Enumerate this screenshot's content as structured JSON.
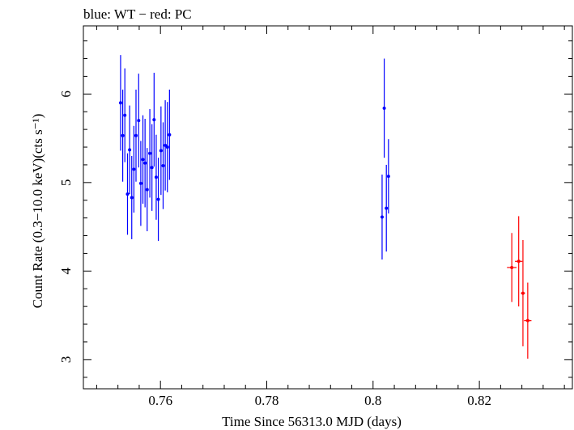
{
  "chart_data": {
    "type": "scatter",
    "title": "blue: WT − red: PC",
    "xlabel": "Time Since 56313.0 MJD (days)",
    "ylabel": "Count Rate (0.3−10.0 keV)(cts s⁻¹)",
    "xlim": [
      0.7455,
      0.8375
    ],
    "ylim": [
      2.67,
      6.77
    ],
    "xticks": [
      0.76,
      0.78,
      0.8,
      0.82
    ],
    "xtick_labels": [
      "0.76",
      "0.78",
      "0.8",
      "0.82"
    ],
    "yticks": [
      3,
      4,
      5,
      6
    ],
    "ytick_labels": [
      "3",
      "4",
      "5",
      "6"
    ],
    "grid": false,
    "series": [
      {
        "name": "WT",
        "color": "#0000ff",
        "points": [
          {
            "x": 0.7525,
            "y": 5.9,
            "yerr": 0.54
          },
          {
            "x": 0.7529,
            "y": 5.53,
            "yerr": 0.52
          },
          {
            "x": 0.7533,
            "y": 5.76,
            "yerr": 0.53
          },
          {
            "x": 0.7538,
            "y": 4.87,
            "yerr": 0.46
          },
          {
            "x": 0.7542,
            "y": 5.37,
            "yerr": 0.5
          },
          {
            "x": 0.7546,
            "y": 4.83,
            "yerr": 0.47
          },
          {
            "x": 0.755,
            "y": 5.15,
            "yerr": 0.49
          },
          {
            "x": 0.7554,
            "y": 5.53,
            "yerr": 0.52
          },
          {
            "x": 0.7559,
            "y": 5.7,
            "yerr": 0.53
          },
          {
            "x": 0.7563,
            "y": 4.99,
            "yerr": 0.48
          },
          {
            "x": 0.7567,
            "y": 5.26,
            "yerr": 0.5
          },
          {
            "x": 0.7571,
            "y": 5.22,
            "yerr": 0.5
          },
          {
            "x": 0.7575,
            "y": 4.92,
            "yerr": 0.47
          },
          {
            "x": 0.758,
            "y": 5.33,
            "yerr": 0.5
          },
          {
            "x": 0.7584,
            "y": 5.17,
            "yerr": 0.49
          },
          {
            "x": 0.7588,
            "y": 5.71,
            "yerr": 0.53
          },
          {
            "x": 0.7592,
            "y": 5.06,
            "yerr": 0.48
          },
          {
            "x": 0.7596,
            "y": 4.81,
            "yerr": 0.47
          },
          {
            "x": 0.7601,
            "y": 5.36,
            "yerr": 0.5
          },
          {
            "x": 0.7605,
            "y": 5.19,
            "yerr": 0.49
          },
          {
            "x": 0.7609,
            "y": 5.42,
            "yerr": 0.51
          },
          {
            "x": 0.7613,
            "y": 5.4,
            "yerr": 0.51
          },
          {
            "x": 0.7617,
            "y": 5.54,
            "yerr": 0.51
          },
          {
            "x": 0.8017,
            "y": 4.61,
            "yerr": 0.48
          },
          {
            "x": 0.8021,
            "y": 5.84,
            "yerr": 0.56
          },
          {
            "x": 0.8025,
            "y": 4.71,
            "yerr": 0.49
          },
          {
            "x": 0.8029,
            "y": 5.07,
            "yerr": 0.42
          }
        ]
      },
      {
        "name": "PC",
        "color": "#ff0000",
        "points": [
          {
            "x": 0.8261,
            "y": 4.04,
            "xerr": 0.0009,
            "yerr": 0.39
          },
          {
            "x": 0.8274,
            "y": 4.11,
            "xerr": 0.0007,
            "yerr": 0.51
          },
          {
            "x": 0.8282,
            "y": 3.75,
            "xerr": 0.0004,
            "yerr": 0.6
          },
          {
            "x": 0.8291,
            "y": 3.44,
            "xerr": 0.0007,
            "yerr": 0.43
          }
        ]
      }
    ]
  }
}
